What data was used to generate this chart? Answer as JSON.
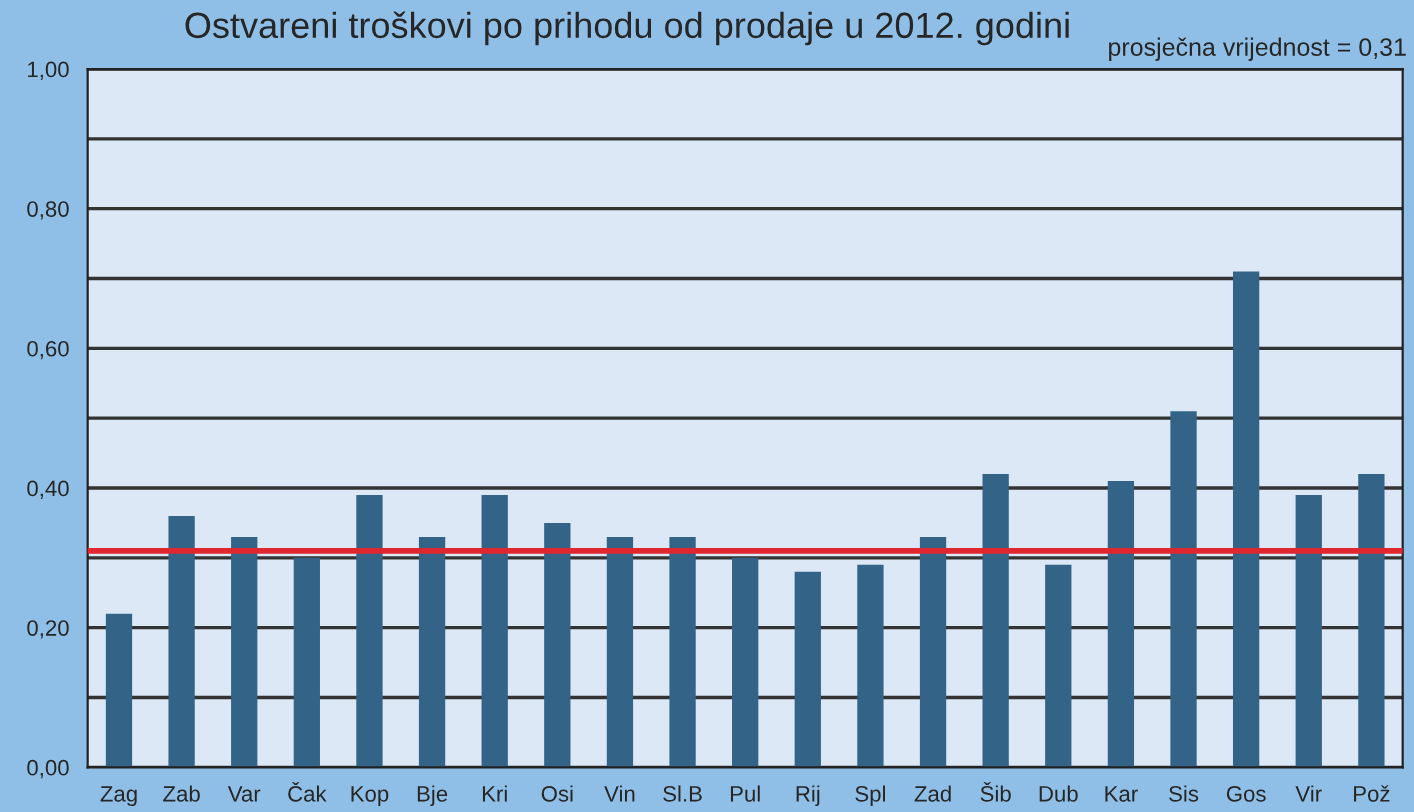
{
  "chart_data": {
    "type": "bar",
    "title": "Ostvareni troškovi po prihodu od prodaje u 2012. godini",
    "categories": [
      "Zag",
      "Zab",
      "Var",
      "Čak",
      "Kop",
      "Bje",
      "Kri",
      "Osi",
      "Vin",
      "Sl.B",
      "Pul",
      "Rij",
      "Spl",
      "Zad",
      "Šib",
      "Dub",
      "Kar",
      "Sis",
      "Gos",
      "Vir",
      "Pož"
    ],
    "values": [
      0.22,
      0.36,
      0.33,
      0.3,
      0.39,
      0.33,
      0.39,
      0.35,
      0.33,
      0.33,
      0.3,
      0.28,
      0.29,
      0.33,
      0.42,
      0.29,
      0.41,
      0.51,
      0.71,
      0.39,
      0.42
    ],
    "color": "#336488",
    "ylim": [
      0,
      1
    ],
    "yticks": [
      {
        "value": 0,
        "label": "0,00"
      },
      {
        "value": 0.1,
        "label": null
      },
      {
        "value": 0.2,
        "label": "0,20"
      },
      {
        "value": 0.3,
        "label": null
      },
      {
        "value": 0.4,
        "label": "0,40"
      },
      {
        "value": 0.5,
        "label": null
      },
      {
        "value": 0.6,
        "label": "0,60"
      },
      {
        "value": 0.7,
        "label": null
      },
      {
        "value": 0.8,
        "label": "0,80"
      },
      {
        "value": 0.9,
        "label": null
      },
      {
        "value": 1.0,
        "label": "1,00"
      }
    ],
    "grid": "y",
    "ref_lines": [
      {
        "axis": "y",
        "value": 0.31,
        "color": "#e0262e"
      }
    ],
    "annotations": [
      "prosječna vrijednost = 0,31"
    ]
  }
}
